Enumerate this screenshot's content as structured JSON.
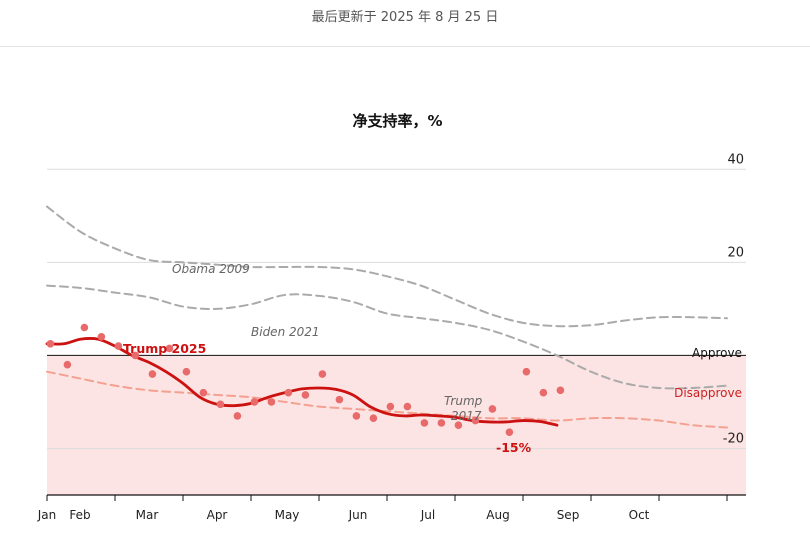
{
  "header": {
    "updated_text": "最后更新于 2025 年 8 月 25 日"
  },
  "chart_data": {
    "type": "line",
    "title": "净支持率，%",
    "ylim": [
      -30,
      42
    ],
    "yticks": [
      40,
      20,
      -20
    ],
    "xlim": [
      0,
      10
    ],
    "months": [
      "Jan",
      "Feb",
      "Mar",
      "Apr",
      "May",
      "Jun",
      "Jul",
      "Aug",
      "Sep",
      "Oct"
    ],
    "zone_labels": {
      "approve": "Approve",
      "disapprove": "Disapprove"
    },
    "colors": {
      "trump2025": "#cc1111",
      "dots": "#e86a6a",
      "trump2017": "#f4a090",
      "obama": "#aaaaaa",
      "biden": "#aaaaaa",
      "disapprove_zone": "#fde4e4"
    },
    "series": [
      {
        "name": "Obama 2009",
        "style": "dashed-gray",
        "x": [
          0,
          0.5,
          1,
          1.5,
          2,
          2.5,
          3,
          3.5,
          4,
          4.5,
          5,
          5.5,
          6,
          6.5,
          7,
          7.5,
          8,
          8.5,
          9,
          9.5,
          10
        ],
        "y": [
          32,
          26.5,
          23,
          20.5,
          20,
          19.5,
          19,
          19,
          19,
          18.5,
          17,
          15,
          12,
          9,
          7,
          6.3,
          6.5,
          7.5,
          8.2,
          8.2,
          8
        ]
      },
      {
        "name": "Biden 2021",
        "style": "dashed-gray",
        "x": [
          0,
          0.5,
          1,
          1.5,
          2,
          2.5,
          3,
          3.5,
          4,
          4.5,
          5,
          5.5,
          6,
          6.5,
          7,
          7.5,
          8,
          8.5,
          9,
          9.5,
          10
        ],
        "y": [
          15,
          14.5,
          13.5,
          12.5,
          10.5,
          10,
          11,
          13,
          12.8,
          11.5,
          9,
          8,
          7,
          5.5,
          3,
          0,
          -3.5,
          -6,
          -7,
          -7,
          -6.5
        ]
      },
      {
        "name": "Trump 2017",
        "style": "dashed-red",
        "x": [
          0,
          0.5,
          1,
          1.5,
          2,
          2.5,
          3,
          3.5,
          4,
          4.5,
          5,
          5.5,
          6,
          6.5,
          7,
          7.5,
          8,
          8.5,
          9,
          9.5,
          10
        ],
        "y": [
          -3.5,
          -5,
          -6.5,
          -7.5,
          -8,
          -8.5,
          -9,
          -10,
          -11,
          -11.5,
          -12,
          -12.5,
          -13,
          -13.5,
          -13.5,
          -14,
          -13.5,
          -13.5,
          -14,
          -15,
          -15.5
        ]
      },
      {
        "name": "Trump 2025",
        "style": "solid-red",
        "x": [
          0,
          0.25,
          0.5,
          0.75,
          1,
          1.25,
          1.5,
          1.75,
          2,
          2.25,
          2.5,
          2.75,
          3,
          3.25,
          3.5,
          3.75,
          4,
          4.25,
          4.5,
          4.75,
          5,
          5.25,
          5.5,
          5.75,
          6,
          6.25,
          6.5,
          6.75,
          7,
          7.25,
          7.5
        ],
        "y": [
          2.5,
          2.5,
          3.5,
          3.5,
          2,
          0,
          -1.5,
          -3.5,
          -6,
          -9,
          -10.5,
          -10.8,
          -10.3,
          -9,
          -8,
          -7.2,
          -7,
          -7.3,
          -8.5,
          -11,
          -12.5,
          -13,
          -12.8,
          -13,
          -13.3,
          -14,
          -14.3,
          -14.3,
          -14,
          -14.2,
          -15
        ]
      }
    ],
    "poll_points": {
      "name": "Trump 2025 polls",
      "x": [
        0.05,
        0.3,
        0.55,
        0.8,
        1.05,
        1.3,
        1.55,
        1.8,
        2.05,
        2.3,
        2.55,
        2.8,
        3.05,
        3.3,
        3.55,
        3.8,
        4.05,
        4.3,
        4.55,
        4.8,
        5.05,
        5.3,
        5.55,
        5.8,
        6.05,
        6.3,
        6.55,
        6.8,
        7.05,
        7.3,
        7.55
      ],
      "y": [
        2.5,
        -2,
        6,
        4,
        2,
        0,
        -4,
        1.5,
        -3.5,
        -8,
        -10.5,
        -13,
        -10,
        -10,
        -8,
        -8.5,
        -4,
        -9.5,
        -13,
        -13.5,
        -11,
        -11,
        -14.5,
        -14.5,
        -15,
        -14,
        -11.5,
        -16.5,
        -3.5,
        -8,
        -7.5
      ]
    },
    "annotations": {
      "obama": "Obama 2009",
      "biden": "Biden 2021",
      "trump2025": "Trump 2025",
      "trump2017_line1": "Trump",
      "trump2017_line2": "2017",
      "latest_value": "-15%"
    }
  }
}
